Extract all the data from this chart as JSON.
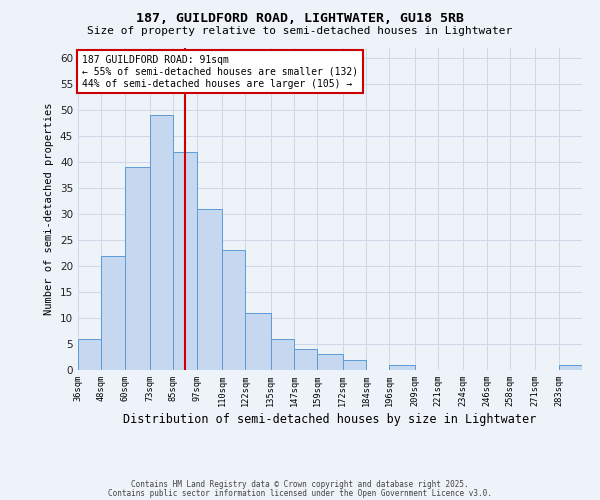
{
  "title_line1": "187, GUILDFORD ROAD, LIGHTWATER, GU18 5RB",
  "title_line2": "Size of property relative to semi-detached houses in Lightwater",
  "xlabel": "Distribution of semi-detached houses by size in Lightwater",
  "ylabel": "Number of semi-detached properties",
  "bin_labels": [
    "36sqm",
    "48sqm",
    "60sqm",
    "73sqm",
    "85sqm",
    "97sqm",
    "110sqm",
    "122sqm",
    "135sqm",
    "147sqm",
    "159sqm",
    "172sqm",
    "184sqm",
    "196sqm",
    "209sqm",
    "221sqm",
    "234sqm",
    "246sqm",
    "258sqm",
    "271sqm",
    "283sqm"
  ],
  "bin_edges": [
    36,
    48,
    60,
    73,
    85,
    97,
    110,
    122,
    135,
    147,
    159,
    172,
    184,
    196,
    209,
    221,
    234,
    246,
    258,
    271,
    283
  ],
  "bar_heights": [
    6,
    22,
    39,
    49,
    42,
    31,
    23,
    11,
    6,
    4,
    3,
    2,
    0,
    1,
    0,
    0,
    0,
    0,
    0,
    0,
    1
  ],
  "bar_color": "#c5d8f0",
  "bar_edge_color": "#5b9bd5",
  "grid_color": "#d0d8e8",
  "background_color": "#eef2f9",
  "vline_x": 91,
  "vline_color": "#cc0000",
  "annotation_title": "187 GUILDFORD ROAD: 91sqm",
  "annotation_line1": "← 55% of semi-detached houses are smaller (132)",
  "annotation_line2": "44% of semi-detached houses are larger (105) →",
  "annotation_box_color": "#ffffff",
  "annotation_box_edge": "#cc0000",
  "ylim": [
    0,
    62
  ],
  "yticks": [
    0,
    5,
    10,
    15,
    20,
    25,
    30,
    35,
    40,
    45,
    50,
    55,
    60
  ],
  "footer_line1": "Contains HM Land Registry data © Crown copyright and database right 2025.",
  "footer_line2": "Contains public sector information licensed under the Open Government Licence v3.0."
}
